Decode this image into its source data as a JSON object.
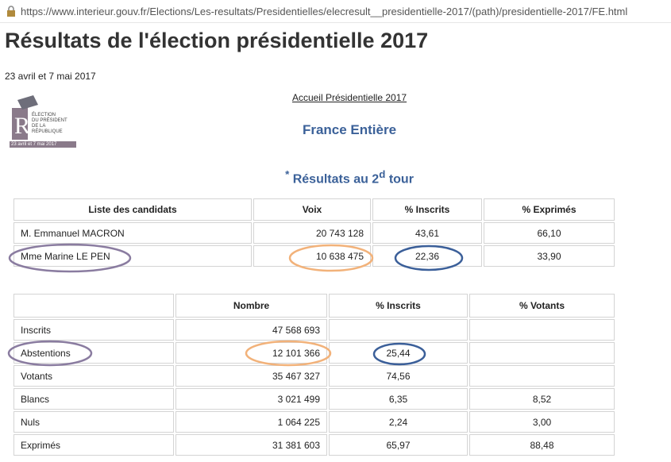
{
  "url": "https://www.interieur.gouv.fr/Elections/Les-resultats/Presidentielles/elecresult__presidentielle-2017/(path)/presidentielle-2017/FE.html",
  "header": {
    "title": "Résultats de l'élection présidentielle 2017",
    "date": "23 avril et 7 mai 2017"
  },
  "logo": {
    "lines": [
      "ÉLECTION",
      "DU PRÉSIDENT",
      "DE LA",
      "RÉPUBLIQUE"
    ],
    "date": "23 avril et 7 mai 2017"
  },
  "link": "Accueil Présidentielle 2017",
  "region": "France Entière",
  "round_heading": {
    "star": "*",
    "text": "Résultats au 2",
    "sup": "d",
    "tail": "tour"
  },
  "candidates_table": {
    "headers": [
      "Liste des candidats",
      "Voix",
      "% Inscrits",
      "% Exprimés"
    ],
    "rows": [
      [
        "M. Emmanuel MACRON",
        "20 743 128",
        "43,61",
        "66,10"
      ],
      [
        "Mme Marine LE PEN",
        "10 638 475",
        "22,36",
        "33,90"
      ]
    ]
  },
  "totals_table": {
    "headers": [
      null,
      "Nombre",
      "% Inscrits",
      "% Votants"
    ],
    "rows": [
      [
        "Inscrits",
        "47 568 693",
        null,
        null
      ],
      [
        "Abstentions",
        "12 101 366",
        "25,44",
        null
      ],
      [
        "Votants",
        "35 467 327",
        "74,56",
        null
      ],
      [
        "Blancs",
        "3 021 499",
        "6,35",
        "8,52"
      ],
      [
        "Nuls",
        "1 064 225",
        "2,24",
        "3,00"
      ],
      [
        "Exprimés",
        "31 381 603",
        "65,97",
        "88,48"
      ]
    ]
  }
}
